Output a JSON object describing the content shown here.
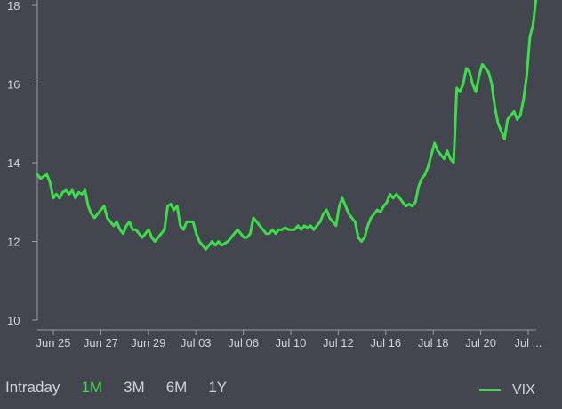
{
  "range_buttons": [
    "Intraday",
    "1M",
    "3M",
    "6M",
    "1Y"
  ],
  "active_range": "1M",
  "colors": {
    "background": "#43454f",
    "line": "#3ddc48",
    "text": "#d0d2d8",
    "axis": "#9a9ca6"
  },
  "chart_data": {
    "type": "line",
    "ylim": [
      10,
      18
    ],
    "yticks": [
      10,
      12,
      14,
      16,
      18
    ],
    "xticks": [
      "Jun 25",
      "Jun 27",
      "Jun 29",
      "Jul 03",
      "Jul 06",
      "Jul 10",
      "Jul 12",
      "Jul 16",
      "Jul 18",
      "Jul 20",
      "Jul ..."
    ],
    "grid": false,
    "legend_position": "bottom-right",
    "series": [
      {
        "name": "VIX",
        "values": [
          13.7,
          13.6,
          13.65,
          13.7,
          13.5,
          13.1,
          13.2,
          13.1,
          13.25,
          13.3,
          13.2,
          13.3,
          13.1,
          13.25,
          13.2,
          13.3,
          12.9,
          12.7,
          12.6,
          12.7,
          12.8,
          12.9,
          12.6,
          12.5,
          12.4,
          12.5,
          12.3,
          12.2,
          12.4,
          12.5,
          12.3,
          12.3,
          12.2,
          12.1,
          12.2,
          12.3,
          12.1,
          12.0,
          12.1,
          12.2,
          12.3,
          12.9,
          12.95,
          12.8,
          12.9,
          12.4,
          12.3,
          12.5,
          12.5,
          12.5,
          12.2,
          12.0,
          11.9,
          11.8,
          11.9,
          12.0,
          11.9,
          12.0,
          11.9,
          11.95,
          12.0,
          12.1,
          12.2,
          12.3,
          12.2,
          12.1,
          12.1,
          12.2,
          12.6,
          12.5,
          12.4,
          12.3,
          12.2,
          12.2,
          12.3,
          12.2,
          12.3,
          12.3,
          12.35,
          12.3,
          12.3,
          12.3,
          12.4,
          12.3,
          12.4,
          12.35,
          12.4,
          12.3,
          12.4,
          12.5,
          12.7,
          12.8,
          12.6,
          12.5,
          12.4,
          12.9,
          13.1,
          12.9,
          12.7,
          12.6,
          12.5,
          12.1,
          12.0,
          12.1,
          12.4,
          12.6,
          12.7,
          12.8,
          12.75,
          12.9,
          13.0,
          13.2,
          13.1,
          13.2,
          13.1,
          13.0,
          12.9,
          12.95,
          12.9,
          13.0,
          13.4,
          13.6,
          13.7,
          13.9,
          14.2,
          14.5,
          14.3,
          14.2,
          14.1,
          14.3,
          14.1,
          14.0,
          15.9,
          15.8,
          16.0,
          16.4,
          16.3,
          16.0,
          15.8,
          16.2,
          16.5,
          16.4,
          16.3,
          16.0,
          15.4,
          15.0,
          14.8,
          14.6,
          15.1,
          15.2,
          15.3,
          15.1,
          15.2,
          15.6,
          16.2,
          17.2,
          17.5,
          18.2
        ]
      }
    ]
  }
}
